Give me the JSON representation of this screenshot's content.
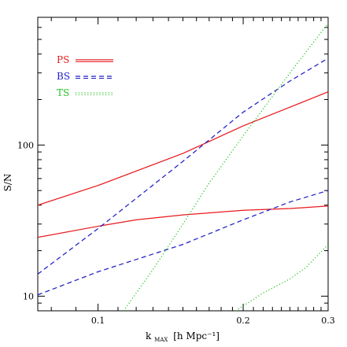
{
  "chart_data": {
    "type": "line",
    "xlabel_main": "k",
    "xlabel_sub": "MAX",
    "xlabel_units": "[h Mpc⁻¹]",
    "ylabel": "S/N",
    "xscale": "log",
    "yscale": "log",
    "xlim": [
      0.075,
      0.3
    ],
    "ylim": [
      8.0,
      700
    ],
    "x_tick_labels": [
      "0.1",
      "0.2",
      "0.3"
    ],
    "y_tick_labels": [
      "10",
      "100"
    ],
    "legend_position": "top-left",
    "legend": [
      {
        "label": "PS",
        "color": "#e8191d",
        "dash": "solid"
      },
      {
        "label": "BS",
        "color": "#1f1fc7",
        "dash": "dashed"
      },
      {
        "label": "TS",
        "color": "#22c522",
        "dash": "dotted"
      }
    ],
    "series": [
      {
        "name": "PS",
        "color": "#e8191d",
        "dash": "solid",
        "x": [
          0.075,
          0.1,
          0.15,
          0.2,
          0.25,
          0.3
        ],
        "y": [
          40,
          54,
          88,
          134,
          178,
          225
        ]
      },
      {
        "name": "PS",
        "color": "#e8191d",
        "dash": "solid",
        "x": [
          0.075,
          0.1,
          0.12,
          0.15,
          0.2,
          0.25,
          0.3
        ],
        "y": [
          24.5,
          29,
          32,
          34.5,
          37,
          38,
          39.5
        ]
      },
      {
        "name": "BS",
        "color": "#1f1fc7",
        "dash": "dashed",
        "x": [
          0.075,
          0.1,
          0.15,
          0.2,
          0.25,
          0.3
        ],
        "y": [
          14,
          28,
          78,
          165,
          265,
          375
        ]
      },
      {
        "name": "BS",
        "color": "#1f1fc7",
        "dash": "dashed",
        "x": [
          0.075,
          0.1,
          0.15,
          0.2,
          0.25,
          0.3
        ],
        "y": [
          10.2,
          14.5,
          22,
          32,
          42,
          50
        ]
      },
      {
        "name": "TS",
        "color": "#22c522",
        "dash": "dotted",
        "x": [
          0.113,
          0.13,
          0.15,
          0.17,
          0.2,
          0.25,
          0.3
        ],
        "y": [
          8.0,
          15,
          30,
          56,
          115,
          300,
          640
        ]
      },
      {
        "name": "TS",
        "color": "#22c522",
        "dash": "dotted",
        "x": [
          0.193,
          0.22,
          0.25,
          0.27,
          0.3
        ],
        "y": [
          8.0,
          10.5,
          13,
          15.5,
          22
        ]
      }
    ]
  }
}
